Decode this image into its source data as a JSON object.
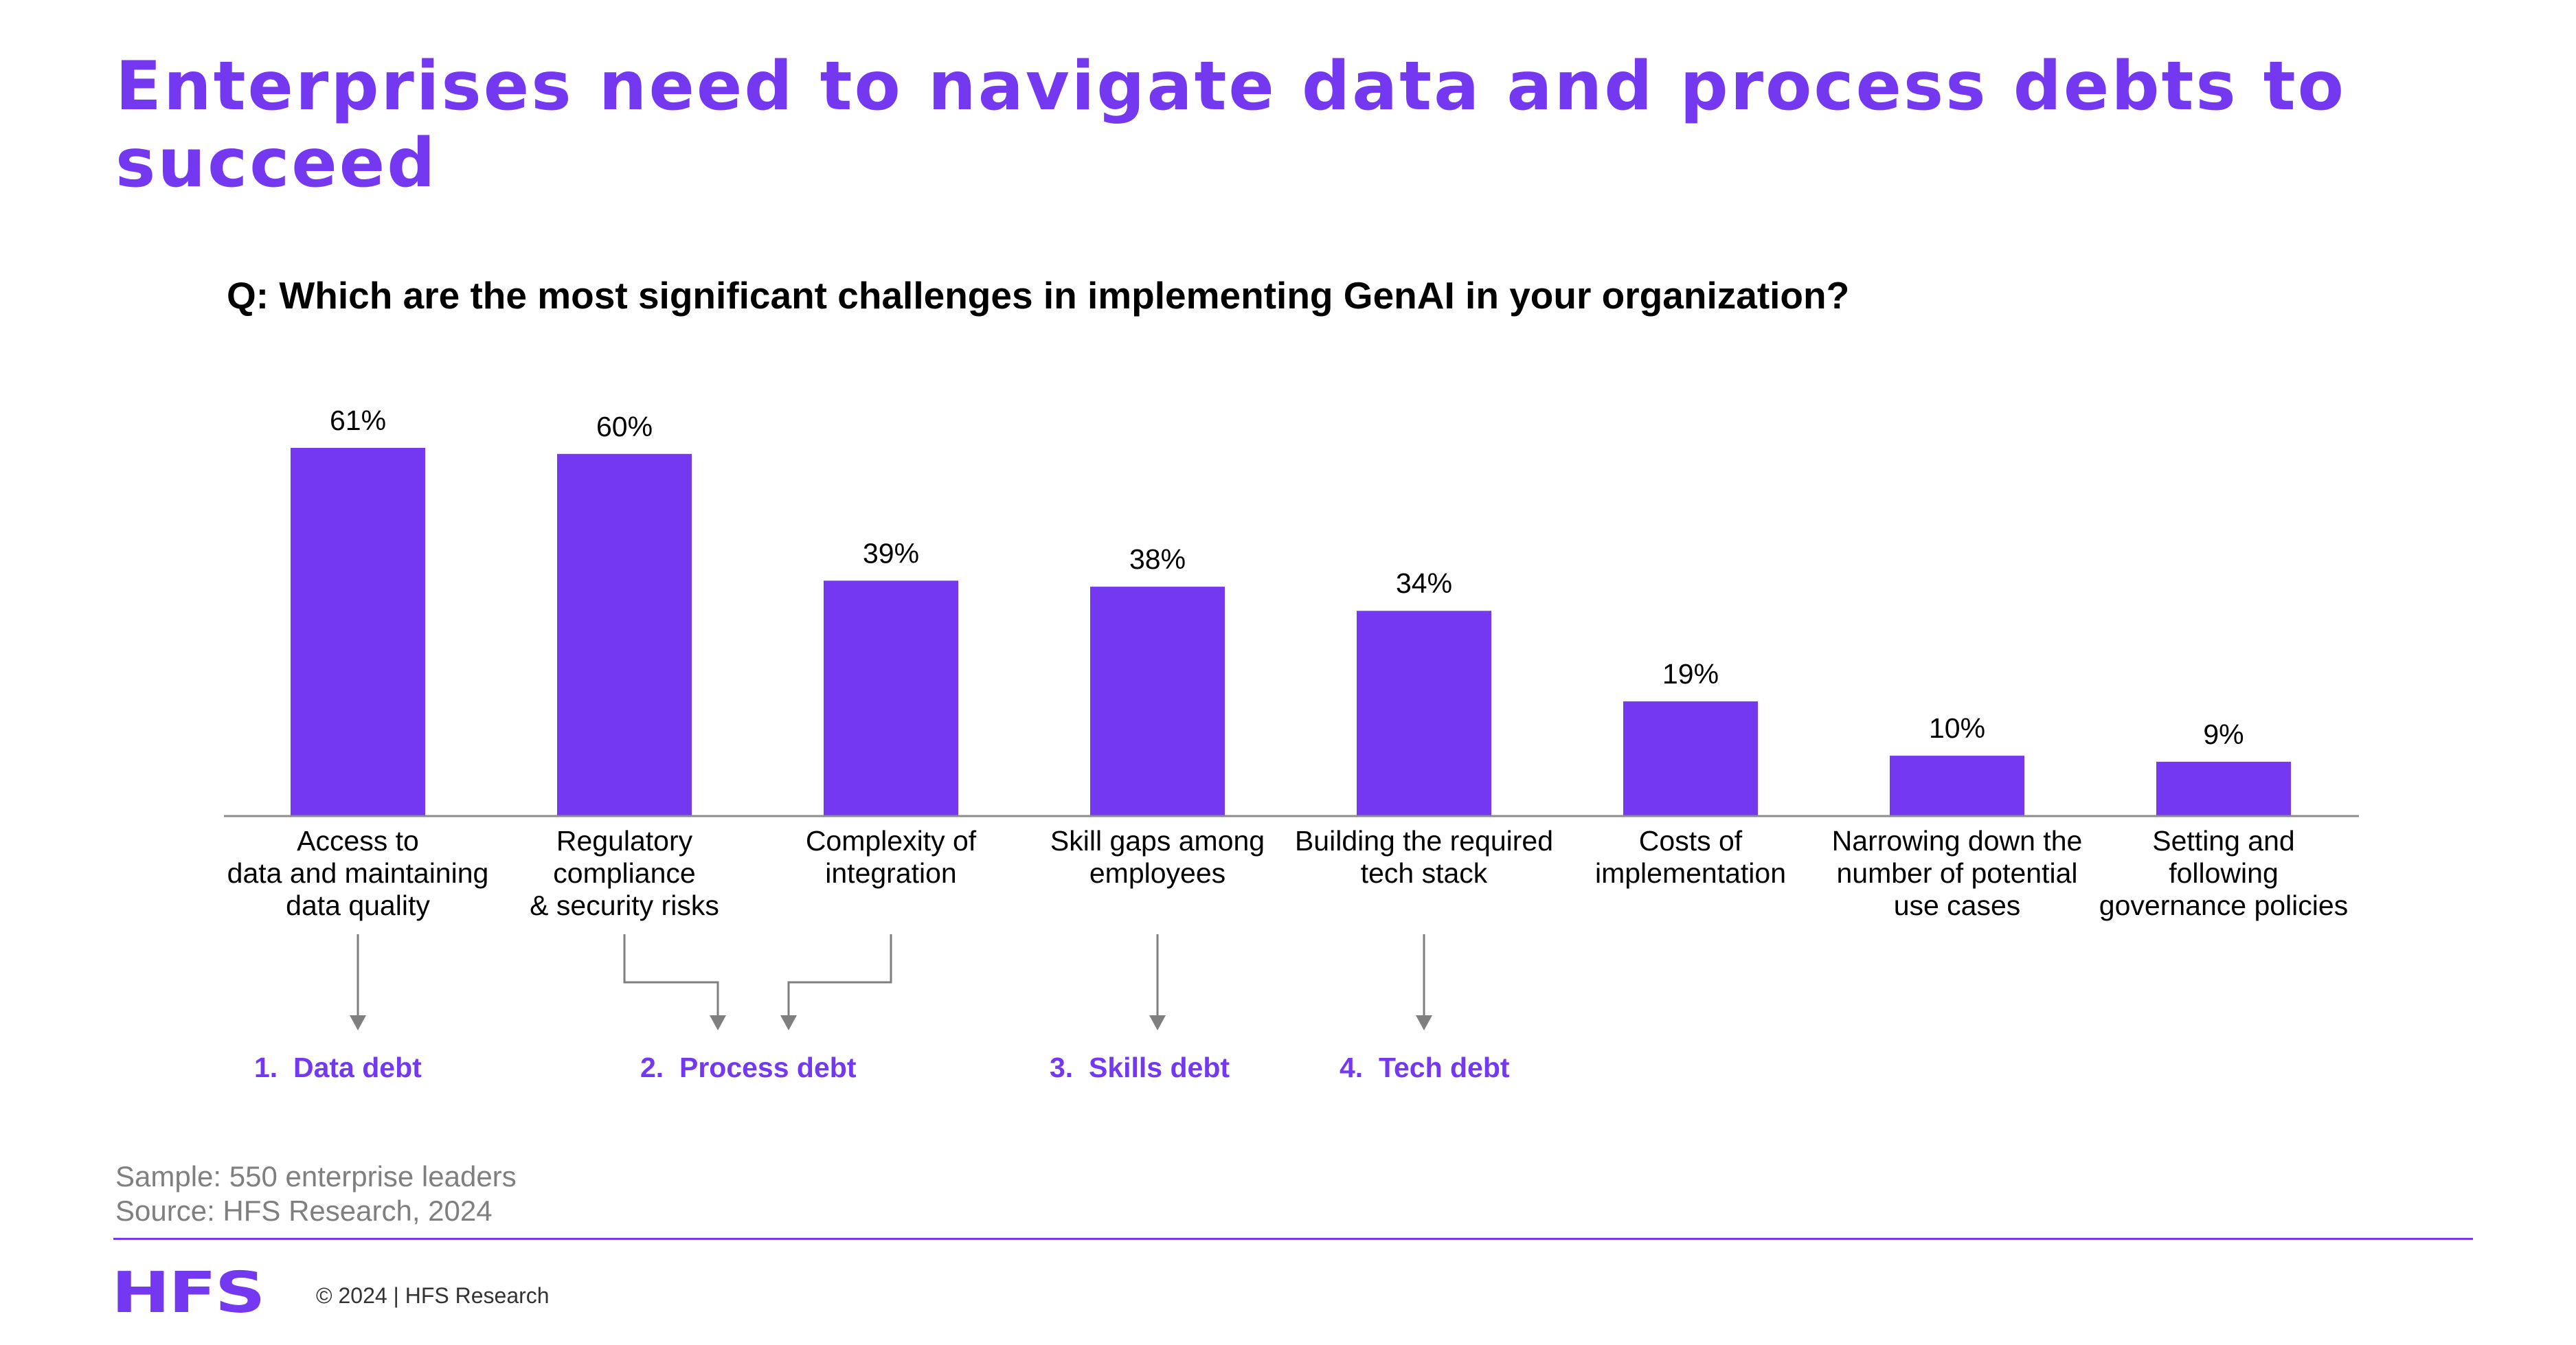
{
  "title": "Enterprises need to navigate data and process debts to succeed",
  "question": "Q: Which are the most significant challenges in implementing GenAI in your organization?",
  "colors": {
    "accent": "#7438F0",
    "bar": "#7438F0",
    "axis": "#8C8C8C",
    "arrow": "#7F7F7F",
    "muted_text": "#7F7F7F"
  },
  "chart_data": {
    "type": "bar",
    "unit": "%",
    "categories": [
      "Access to data and maintaining data quality",
      "Regulatory compliance & security risks",
      "Complexity of integration",
      "Skill gaps among employees",
      "Building the required tech stack",
      "Costs of implementation",
      "Narrowing down the number of potential use cases",
      "Setting and following governance policies"
    ],
    "category_lines": [
      [
        "Access to",
        "data and maintaining",
        "data quality"
      ],
      [
        "Regulatory",
        "compliance",
        "& security risks"
      ],
      [
        "Complexity of",
        "integration"
      ],
      [
        "Skill gaps among",
        "employees"
      ],
      [
        "Building the required",
        "tech stack"
      ],
      [
        "Costs of",
        "implementation"
      ],
      [
        "Narrowing down the",
        "number of potential",
        "use cases"
      ],
      [
        "Setting and",
        "following",
        "governance policies"
      ]
    ],
    "values": [
      61,
      60,
      39,
      38,
      34,
      19,
      10,
      9
    ],
    "value_labels": [
      "61%",
      "60%",
      "39%",
      "38%",
      "34%",
      "19%",
      "10%",
      "9%"
    ],
    "ylim": [
      0,
      61
    ],
    "grid": false,
    "legend": "none",
    "debt_groups": [
      {
        "label": "1.  Data debt",
        "categories": [
          0
        ]
      },
      {
        "label": "2.  Process debt",
        "categories": [
          1,
          2
        ]
      },
      {
        "label": "3.  Skills debt",
        "categories": [
          3
        ]
      },
      {
        "label": "4.  Tech debt",
        "categories": [
          4
        ]
      }
    ]
  },
  "sample_text": "Sample: 550 enterprise leaders",
  "source_text": "Source: HFS Research, 2024",
  "logo_text": "HFS",
  "copyright_text": "© 2024 | HFS Research"
}
